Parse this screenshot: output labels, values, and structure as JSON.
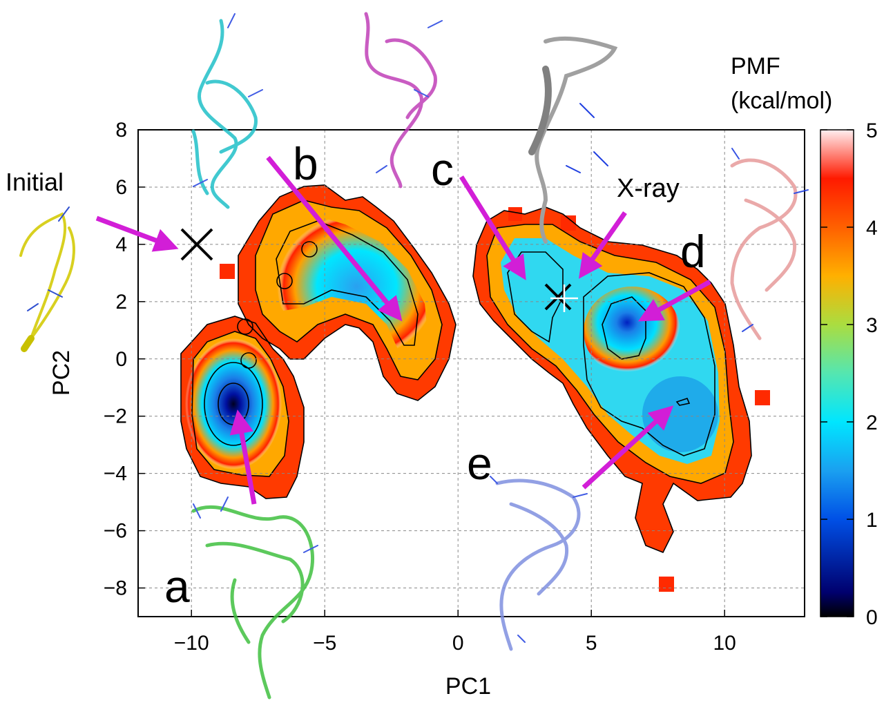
{
  "chart_data": {
    "type": "heatmap",
    "xlabel": "PC1",
    "ylabel": "PC2",
    "xlim": [
      -12,
      13
    ],
    "ylim": [
      -9,
      8
    ],
    "x_ticks": [
      -10,
      -5,
      0,
      5,
      10
    ],
    "y_ticks": [
      8,
      6,
      4,
      2,
      0,
      -2,
      -4,
      -6,
      -8
    ],
    "grid": true,
    "colorbar": {
      "title_line1": "PMF",
      "title_line2": "(kcal/mol)",
      "range": [
        0,
        5
      ],
      "ticks": [
        5,
        4,
        3,
        2,
        1,
        0
      ]
    },
    "basins": [
      {
        "label": "a",
        "x": -8.5,
        "y": -1.8
      },
      {
        "label": "b",
        "x": -2.0,
        "y": 1.2
      },
      {
        "label": "c",
        "x": 2.6,
        "y": 2.7
      },
      {
        "label": "d",
        "x": 6.4,
        "y": 1.3
      },
      {
        "label": "e",
        "x": 8.2,
        "y": -1.5
      }
    ],
    "markers": [
      {
        "label": "Initial",
        "symbol": "x",
        "x": -9.8,
        "y": 4.0
      },
      {
        "label": "X-ray",
        "symbol": "x-plus",
        "x": 4.0,
        "y": 2.1
      }
    ],
    "circle_markers": [
      {
        "x": -6.8,
        "y": 3.8
      },
      {
        "x": -7.8,
        "y": 2.7
      },
      {
        "x": -8.2,
        "y": 1.1
      },
      {
        "x": -7.9,
        "y": 0.0
      }
    ]
  }
}
